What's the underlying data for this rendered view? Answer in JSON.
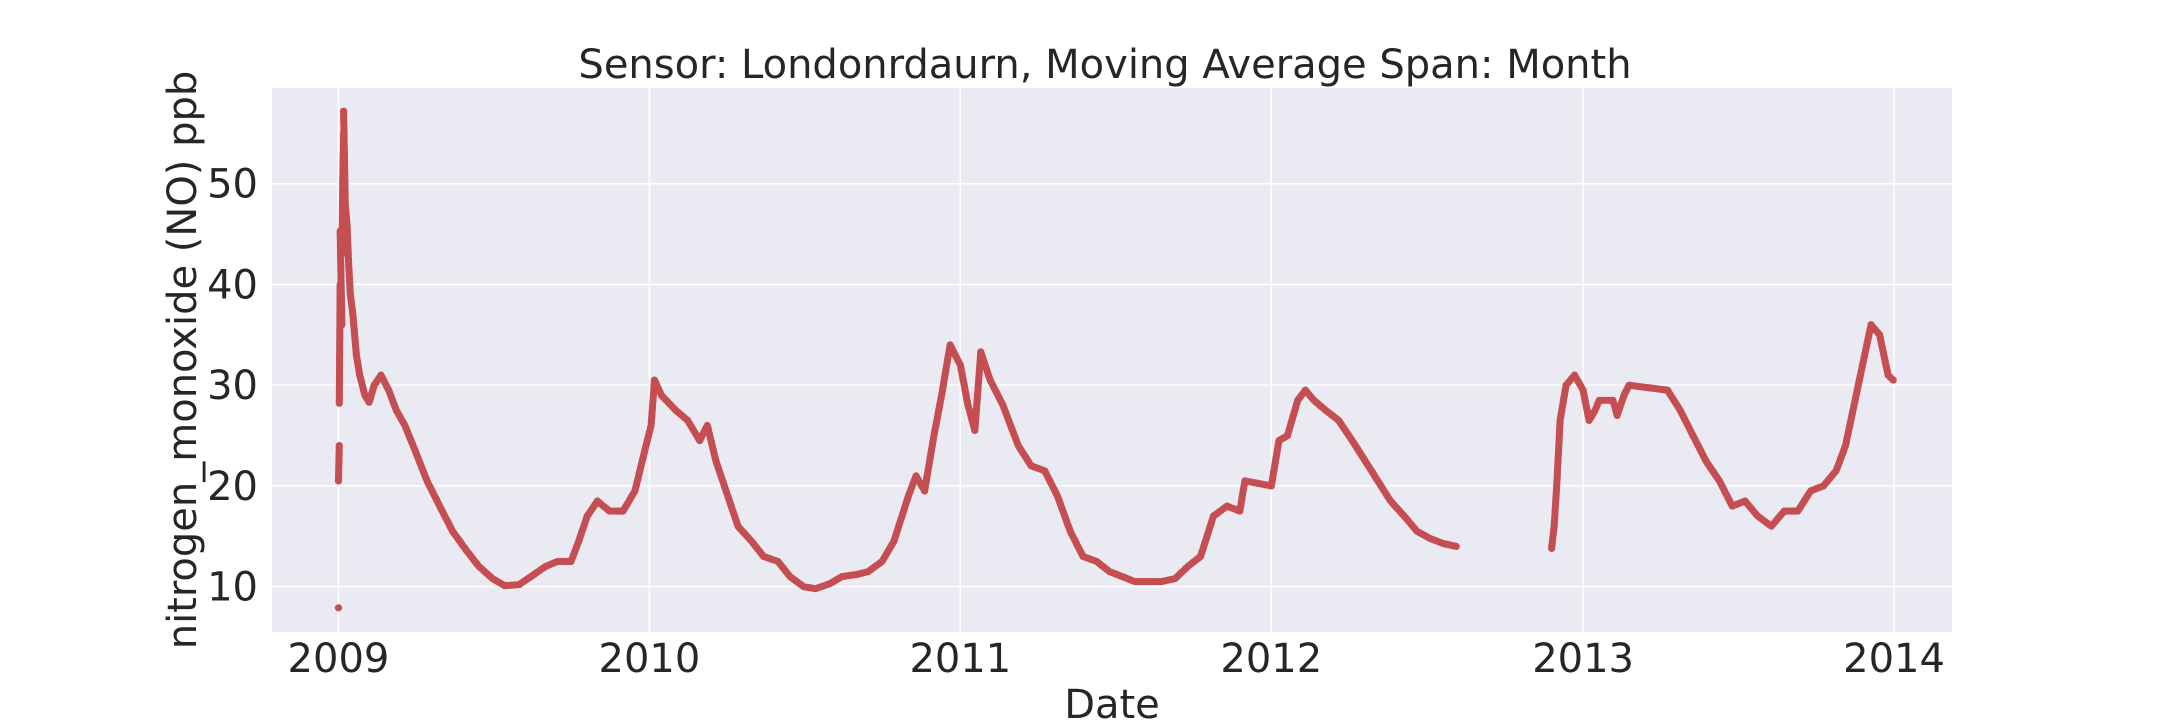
{
  "chart_data": {
    "type": "scatter",
    "title": "Sensor: Londonrdaurn, Moving Average Span: Month",
    "xlabel": "Date",
    "ylabel": "nitrogen_monoxide (NO) ppb",
    "x_ticks": [
      "2009",
      "2010",
      "2011",
      "2012",
      "2013",
      "2014"
    ],
    "y_ticks": [
      "10",
      "20",
      "30",
      "40",
      "50"
    ],
    "xlim": [
      "2008-10-15",
      "2014-03-10"
    ],
    "ylim": [
      5.5,
      59.5
    ],
    "grid": true,
    "legend": "none",
    "marker_color": "#c44e52",
    "plot_background": "#eaeaf2",
    "series": [
      {
        "points": [
          [
            "2009-01-01",
            7.9
          ],
          [
            "2009-01-01",
            20.5
          ],
          [
            "2009-01-02",
            24.0
          ],
          [
            "2009-01-02",
            28.2
          ],
          [
            "2009-01-03",
            40.0
          ],
          [
            "2009-01-03",
            45.3
          ],
          [
            "2009-01-05",
            36.0
          ],
          [
            "2009-01-05",
            43.0
          ],
          [
            "2009-01-06",
            50.0
          ],
          [
            "2009-01-07",
            55.0
          ],
          [
            "2009-01-07",
            57.2
          ],
          [
            "2009-01-08",
            53.0
          ],
          [
            "2009-01-09",
            48.0
          ],
          [
            "2009-01-11",
            46.0
          ],
          [
            "2009-01-13",
            42.0
          ],
          [
            "2009-01-15",
            39.0
          ],
          [
            "2009-01-18",
            37.0
          ],
          [
            "2009-01-22",
            33.0
          ],
          [
            "2009-01-26",
            31.0
          ],
          [
            "2009-02-01",
            29.0
          ],
          [
            "2009-02-06",
            28.3
          ],
          [
            "2009-02-12",
            30.0
          ],
          [
            "2009-02-20",
            31.0
          ],
          [
            "2009-03-01",
            29.5
          ],
          [
            "2009-03-10",
            27.5
          ],
          [
            "2009-03-20",
            26.0
          ],
          [
            "2009-04-01",
            23.5
          ],
          [
            "2009-04-15",
            20.5
          ],
          [
            "2009-05-01",
            17.8
          ],
          [
            "2009-05-15",
            15.5
          ],
          [
            "2009-06-01",
            13.5
          ],
          [
            "2009-06-15",
            12.0
          ],
          [
            "2009-07-01",
            10.8
          ],
          [
            "2009-07-15",
            10.1
          ],
          [
            "2009-08-01",
            10.2
          ],
          [
            "2009-08-15",
            11.0
          ],
          [
            "2009-09-01",
            12.0
          ],
          [
            "2009-09-15",
            12.5
          ],
          [
            "2009-10-01",
            12.5
          ],
          [
            "2009-10-10",
            14.5
          ],
          [
            "2009-10-20",
            17.0
          ],
          [
            "2009-11-01",
            18.5
          ],
          [
            "2009-11-15",
            17.5
          ],
          [
            "2009-12-01",
            17.5
          ],
          [
            "2009-12-15",
            19.5
          ],
          [
            "2009-12-28",
            24.0
          ],
          [
            "2010-01-03",
            26.0
          ],
          [
            "2010-01-07",
            30.5
          ],
          [
            "2010-01-15",
            29.0
          ],
          [
            "2010-02-01",
            27.5
          ],
          [
            "2010-02-15",
            26.5
          ],
          [
            "2010-03-01",
            24.5
          ],
          [
            "2010-03-10",
            26.0
          ],
          [
            "2010-03-20",
            22.5
          ],
          [
            "2010-04-01",
            19.5
          ],
          [
            "2010-04-15",
            16.0
          ],
          [
            "2010-05-01",
            14.5
          ],
          [
            "2010-05-15",
            13.0
          ],
          [
            "2010-06-01",
            12.5
          ],
          [
            "2010-06-15",
            11.0
          ],
          [
            "2010-07-01",
            10.0
          ],
          [
            "2010-07-15",
            9.8
          ],
          [
            "2010-08-01",
            10.3
          ],
          [
            "2010-08-15",
            11.0
          ],
          [
            "2010-09-01",
            11.2
          ],
          [
            "2010-09-15",
            11.5
          ],
          [
            "2010-10-01",
            12.5
          ],
          [
            "2010-10-15",
            14.5
          ],
          [
            "2010-11-01",
            19.0
          ],
          [
            "2010-11-10",
            21.0
          ],
          [
            "2010-11-20",
            19.5
          ],
          [
            "2010-12-01",
            25.0
          ],
          [
            "2010-12-10",
            29.0
          ],
          [
            "2010-12-20",
            34.0
          ],
          [
            "2011-01-01",
            32.0
          ],
          [
            "2011-01-10",
            28.0
          ],
          [
            "2011-01-18",
            25.5
          ],
          [
            "2011-01-25",
            33.3
          ],
          [
            "2011-02-05",
            30.5
          ],
          [
            "2011-02-20",
            28.0
          ],
          [
            "2011-03-10",
            24.0
          ],
          [
            "2011-03-25",
            22.0
          ],
          [
            "2011-04-10",
            21.5
          ],
          [
            "2011-04-25",
            19.0
          ],
          [
            "2011-05-10",
            15.5
          ],
          [
            "2011-05-25",
            13.0
          ],
          [
            "2011-06-10",
            12.5
          ],
          [
            "2011-06-25",
            11.5
          ],
          [
            "2011-07-10",
            11.0
          ],
          [
            "2011-07-25",
            10.5
          ],
          [
            "2011-08-10",
            10.5
          ],
          [
            "2011-08-25",
            10.5
          ],
          [
            "2011-09-10",
            10.8
          ],
          [
            "2011-09-25",
            12.0
          ],
          [
            "2011-10-10",
            13.0
          ],
          [
            "2011-10-25",
            17.0
          ],
          [
            "2011-11-10",
            18.0
          ],
          [
            "2011-11-25",
            17.5
          ],
          [
            "2011-12-01",
            20.5
          ],
          [
            "2012-01-01",
            20.0
          ],
          [
            "2012-01-10",
            24.5
          ],
          [
            "2012-01-20",
            25.0
          ],
          [
            "2012-02-01",
            28.5
          ],
          [
            "2012-02-10",
            29.5
          ],
          [
            "2012-02-20",
            28.5
          ],
          [
            "2012-03-05",
            27.5
          ],
          [
            "2012-03-20",
            26.5
          ],
          [
            "2012-04-05",
            24.5
          ],
          [
            "2012-04-20",
            22.5
          ],
          [
            "2012-05-05",
            20.5
          ],
          [
            "2012-05-20",
            18.5
          ],
          [
            "2012-06-05",
            17.0
          ],
          [
            "2012-06-20",
            15.5
          ],
          [
            "2012-07-05",
            14.8
          ],
          [
            "2012-07-20",
            14.3
          ],
          [
            "2012-08-05",
            14.0
          ],
          [
            "2012-11-25",
            13.8
          ],
          [
            "2012-11-28",
            16.0
          ],
          [
            "2012-12-01",
            20.0
          ],
          [
            "2012-12-05",
            26.5
          ],
          [
            "2012-12-12",
            30.0
          ],
          [
            "2012-12-22",
            31.0
          ],
          [
            "2013-01-01",
            29.5
          ],
          [
            "2013-01-08",
            26.5
          ],
          [
            "2013-01-15",
            27.5
          ],
          [
            "2013-01-20",
            28.5
          ],
          [
            "2013-02-05",
            28.5
          ],
          [
            "2013-02-10",
            27.0
          ],
          [
            "2013-02-18",
            29.0
          ],
          [
            "2013-02-24",
            30.0
          ],
          [
            "2013-04-10",
            29.5
          ],
          [
            "2013-04-25",
            27.5
          ],
          [
            "2013-05-10",
            25.0
          ],
          [
            "2013-05-25",
            22.5
          ],
          [
            "2013-06-10",
            20.5
          ],
          [
            "2013-06-25",
            18.0
          ],
          [
            "2013-07-10",
            18.5
          ],
          [
            "2013-07-25",
            17.0
          ],
          [
            "2013-08-10",
            16.0
          ],
          [
            "2013-08-25",
            17.5
          ],
          [
            "2013-09-10",
            17.5
          ],
          [
            "2013-09-25",
            19.5
          ],
          [
            "2013-10-10",
            20.0
          ],
          [
            "2013-10-25",
            21.5
          ],
          [
            "2013-11-05",
            24.0
          ],
          [
            "2013-11-15",
            28.0
          ],
          [
            "2013-11-25",
            32.0
          ],
          [
            "2013-12-05",
            36.0
          ],
          [
            "2013-12-15",
            35.0
          ],
          [
            "2013-12-25",
            31.0
          ],
          [
            "2013-12-31",
            30.5
          ]
        ]
      }
    ]
  }
}
